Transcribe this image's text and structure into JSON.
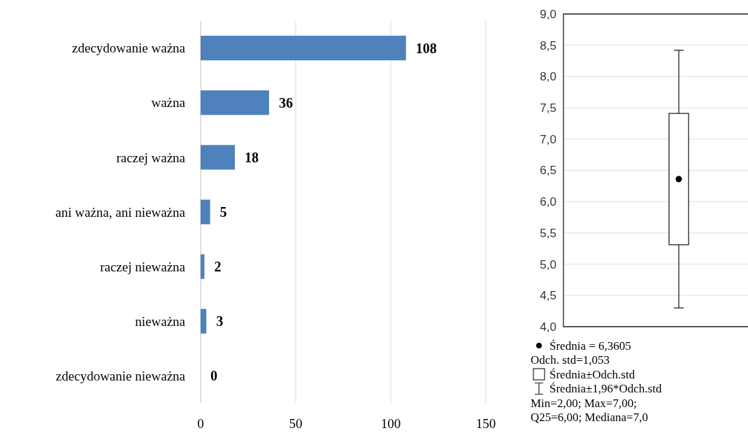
{
  "chart_data": [
    {
      "type": "bar",
      "orientation": "horizontal",
      "categories": [
        "zdecydowanie ważna",
        "ważna",
        "raczej ważna",
        "ani ważna, ani nieważna",
        "raczej nieważna",
        "nieważna",
        "zdecydowanie nieważna"
      ],
      "values": [
        108,
        36,
        18,
        5,
        2,
        3,
        0
      ],
      "color": "#4f81bd",
      "xlim": [
        0,
        150
      ],
      "xticks": [
        0,
        50,
        100,
        150
      ],
      "grid": "x",
      "data_labels": true
    },
    {
      "type": "box",
      "categories": [
        null
      ],
      "boxes": [
        {
          "low": 4.3,
          "q1": 5.31,
          "q3": 7.41,
          "high": 8.42,
          "mean": 6.3605
        }
      ],
      "ylim": [
        4,
        9
      ],
      "yticks": [
        {
          "value": 4,
          "label": "4,0"
        },
        {
          "value": 4.5,
          "label": "4,5"
        },
        {
          "value": 5,
          "label": "5,0"
        },
        {
          "value": 5.5,
          "label": "5,5"
        },
        {
          "value": 6,
          "label": "6,0"
        },
        {
          "value": 6.5,
          "label": "6,5"
        },
        {
          "value": 7,
          "label": "7,0"
        },
        {
          "value": 7.5,
          "label": "7,5"
        },
        {
          "value": 8,
          "label": "8,0"
        },
        {
          "value": 8.5,
          "label": "8,5"
        },
        {
          "value": 9,
          "label": "9,0"
        }
      ],
      "grid": "y",
      "annotations": [
        "Średnia = 6,3605",
        "Odch. std=1,053",
        "Średnia±Odch.std",
        "Średnia±1,96*Odch.std",
        "Min=2,00; Max=7,00;",
        "Q25=6,00; Mediana=7,0"
      ]
    }
  ]
}
